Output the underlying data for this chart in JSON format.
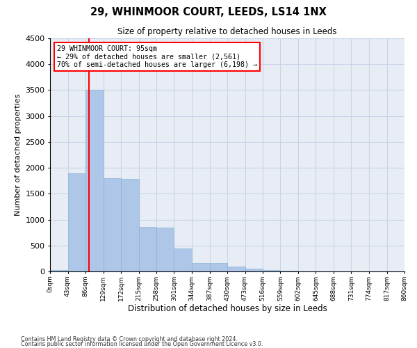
{
  "title": "29, WHINMOOR COURT, LEEDS, LS14 1NX",
  "subtitle": "Size of property relative to detached houses in Leeds",
  "xlabel": "Distribution of detached houses by size in Leeds",
  "ylabel": "Number of detached properties",
  "bar_color": "#aec6e8",
  "bar_edge_color": "#8ab4d8",
  "vline_x": 95,
  "vline_color": "red",
  "annotation_line1": "29 WHINMOOR COURT: 95sqm",
  "annotation_line2": "← 29% of detached houses are smaller (2,561)",
  "annotation_line3": "70% of semi-detached houses are larger (6,198) →",
  "annotation_box_color": "red",
  "annotation_box_facecolor": "white",
  "grid_color": "#c8d4e8",
  "background_color": "#e8edf5",
  "ylim": [
    0,
    4500
  ],
  "yticks": [
    0,
    500,
    1000,
    1500,
    2000,
    2500,
    3000,
    3500,
    4000,
    4500
  ],
  "bin_edges": [
    0,
    43,
    86,
    129,
    172,
    215,
    258,
    301,
    344,
    387,
    430,
    473,
    516,
    559,
    602,
    645,
    688,
    731,
    774,
    817,
    860
  ],
  "bin_labels": [
    "0sqm",
    "43sqm",
    "86sqm",
    "129sqm",
    "172sqm",
    "215sqm",
    "258sqm",
    "301sqm",
    "344sqm",
    "387sqm",
    "430sqm",
    "473sqm",
    "516sqm",
    "559sqm",
    "602sqm",
    "645sqm",
    "688sqm",
    "731sqm",
    "774sqm",
    "817sqm",
    "860sqm"
  ],
  "bar_heights": [
    25,
    1900,
    3500,
    1800,
    1780,
    860,
    850,
    450,
    165,
    155,
    90,
    55,
    28,
    8,
    4,
    2,
    1,
    0,
    0,
    0
  ],
  "footnote1": "Contains HM Land Registry data © Crown copyright and database right 2024.",
  "footnote2": "Contains public sector information licensed under the Open Government Licence v3.0."
}
